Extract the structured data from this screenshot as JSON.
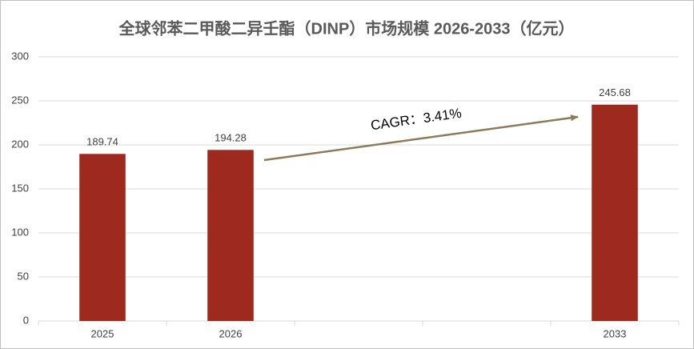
{
  "chart_data": {
    "type": "bar",
    "title": "全球邻苯二甲酸二异壬酯（DINP）市场规模 2026-2033（亿元）",
    "categories": [
      "2025",
      "2026",
      null,
      null,
      "2033"
    ],
    "values": [
      189.74,
      194.28,
      null,
      null,
      245.68
    ],
    "color": "#9e2a1f",
    "ylim": [
      0,
      300
    ],
    "yticks": [
      0,
      50,
      100,
      150,
      200,
      250,
      300
    ],
    "grid": true,
    "annotation": "CAGR：3.41%"
  }
}
